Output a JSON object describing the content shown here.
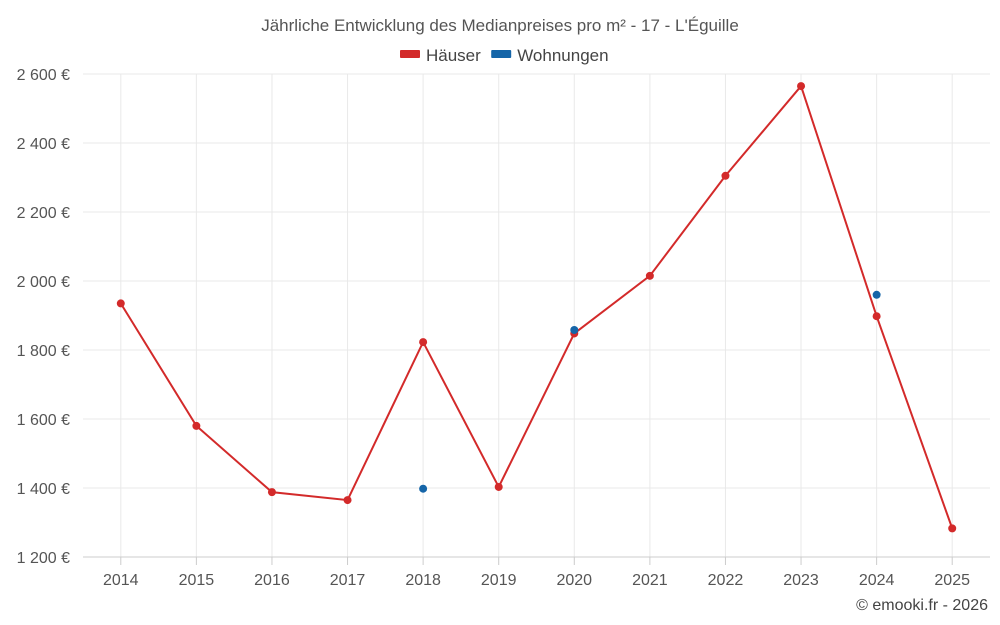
{
  "chart_data": {
    "type": "line",
    "title": "Jährliche Entwicklung des Medianpreises pro m² - 17 - L'Éguille",
    "categories": [
      "2014",
      "2015",
      "2016",
      "2017",
      "2018",
      "2019",
      "2020",
      "2021",
      "2022",
      "2023",
      "2024",
      "2025"
    ],
    "ylim": [
      1200,
      2600
    ],
    "yticks": [
      1200,
      1400,
      1600,
      1800,
      2000,
      2200,
      2400,
      2600
    ],
    "ytick_labels": [
      "1 200 €",
      "1 400 €",
      "1 600 €",
      "1 800 €",
      "2 000 €",
      "2 200 €",
      "2 400 €",
      "2 600 €"
    ],
    "grid": true,
    "legend_position": "top-center",
    "series": [
      {
        "name": "Häuser",
        "color": "#d32a2a",
        "values": [
          1935,
          1580,
          1388,
          1365,
          1823,
          1403,
          1848,
          2015,
          2305,
          2565,
          1898,
          1283
        ]
      },
      {
        "name": "Wohnungen",
        "color": "#1565a8",
        "values": [
          null,
          null,
          null,
          null,
          1398,
          null,
          1858,
          null,
          null,
          null,
          1960,
          null
        ]
      }
    ]
  },
  "credit": "© emooki.fr - 2026"
}
